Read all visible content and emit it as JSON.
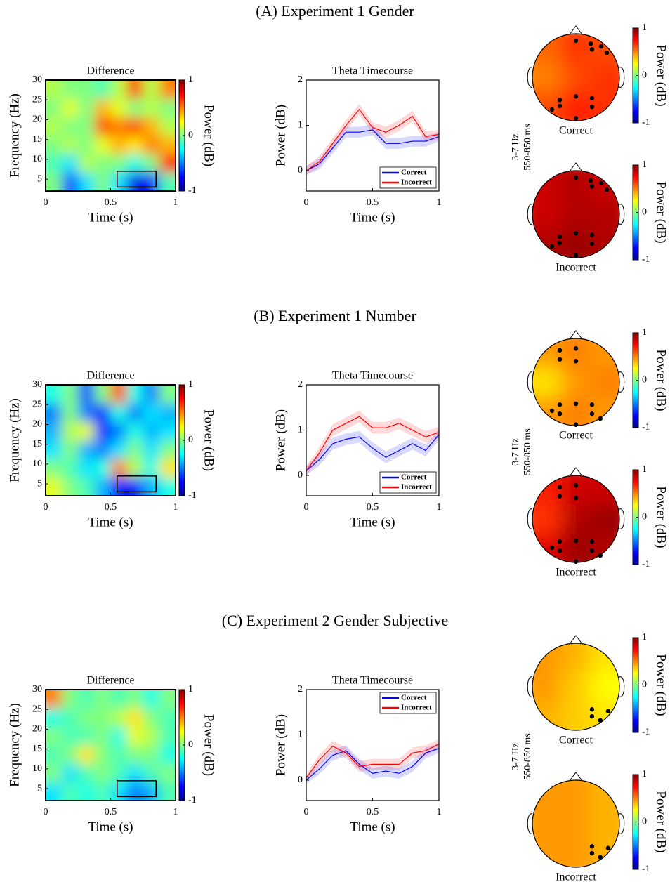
{
  "chart_data": [
    {
      "type": "heatmap",
      "panel_title": "(A) Experiment 1 Gender",
      "title": "Difference",
      "xlabel": "Time (s)",
      "ylabel": "Frequency (Hz)",
      "xlim": [
        0,
        1
      ],
      "ylim": [
        2,
        30
      ],
      "xticks": [
        0,
        0.5,
        1
      ],
      "yticks": [
        5,
        10,
        15,
        20,
        25,
        30
      ],
      "values": [
        [
          0,
          -0.6,
          -0.3,
          0,
          -0.3,
          -0.8,
          -0.7,
          -0.1
        ],
        [
          -0.1,
          -0.3,
          0.1,
          0,
          0,
          -0.2,
          0,
          0.7
        ],
        [
          0,
          0.1,
          0,
          0.2,
          0.4,
          0.3,
          0.5,
          0.4
        ],
        [
          0.1,
          0,
          0,
          0.6,
          0.5,
          0.6,
          0.4,
          0.1
        ],
        [
          0,
          0.2,
          0,
          0.4,
          0.2,
          0,
          0.1,
          0
        ],
        [
          0.1,
          0,
          0,
          -0.1,
          0.1,
          0.6,
          0.1,
          0.5
        ]
      ],
      "clim": [
        -1,
        1
      ],
      "cticks": [
        -1,
        0,
        1
      ],
      "colorbar_label": "Power (dB)",
      "box": {
        "x": [
          0.55,
          0.85
        ],
        "y": [
          3,
          7
        ]
      }
    },
    {
      "type": "line",
      "title": "Theta Timecourse",
      "xlabel": "Time (s)",
      "ylabel": "Power (dB)",
      "x": [
        0,
        0.1,
        0.2,
        0.3,
        0.4,
        0.5,
        0.6,
        0.7,
        0.8,
        0.9,
        1
      ],
      "xlim": [
        0,
        1
      ],
      "ylim": [
        -0.45,
        2
      ],
      "xticks": [
        0,
        0.5,
        1
      ],
      "yticks": [
        0,
        1,
        2
      ],
      "legend": "lower right",
      "series": [
        {
          "name": "Correct",
          "color": "#0000ff",
          "values": [
            0,
            0.15,
            0.5,
            0.85,
            0.85,
            0.9,
            0.6,
            0.6,
            0.65,
            0.65,
            0.75
          ],
          "error": [
            0.1,
            0.12,
            0.12,
            0.12,
            0.12,
            0.12,
            0.12,
            0.12,
            0.12,
            0.12,
            0.1
          ]
        },
        {
          "name": "Incorrect",
          "color": "#ff0000",
          "values": [
            0,
            0.2,
            0.6,
            1.0,
            1.35,
            0.95,
            0.85,
            1.0,
            1.2,
            0.75,
            0.8
          ],
          "error": [
            0.1,
            0.12,
            0.12,
            0.12,
            0.12,
            0.12,
            0.12,
            0.12,
            0.12,
            0.12,
            0.1
          ]
        }
      ]
    },
    {
      "type": "topomap",
      "band_label": [
        "3-7 Hz",
        "550-850 ms"
      ],
      "clim": [
        -1,
        1
      ],
      "cticks": [
        -1,
        0,
        1
      ],
      "colorbar_label": "Power (dB)",
      "electrodes": {
        "x": [
          0,
          0.34,
          0.58,
          0.71,
          0.37,
          -0.37,
          0,
          0.37,
          -0.55,
          -0.37,
          0.37,
          0
        ],
        "y": [
          0.84,
          0.77,
          0.71,
          0.56,
          0.64,
          -0.52,
          -0.44,
          -0.48,
          -0.74,
          -0.66,
          -0.68,
          -0.94
        ]
      },
      "heads": [
        {
          "name": "Correct",
          "values": [
            [
              0.55,
              0.65,
              0.6
            ],
            [
              0.5,
              0.6,
              0.65
            ],
            [
              0.6,
              0.7,
              0.65
            ]
          ]
        },
        {
          "name": "Incorrect",
          "values": [
            [
              0.85,
              0.9,
              0.85
            ],
            [
              0.85,
              0.9,
              0.9
            ],
            [
              0.9,
              0.95,
              0.9
            ]
          ]
        }
      ]
    },
    {
      "type": "heatmap",
      "panel_title": "(B) Experiment 1 Number",
      "title": "Difference",
      "xlabel": "Time (s)",
      "ylabel": "Frequency (Hz)",
      "xlim": [
        0,
        1
      ],
      "ylim": [
        2,
        30
      ],
      "xticks": [
        0,
        0.5,
        1
      ],
      "yticks": [
        5,
        10,
        15,
        20,
        25,
        30
      ],
      "values": [
        [
          0.2,
          0,
          -0.1,
          -0.4,
          -0.7,
          -0.7,
          -0.4,
          -0.2
        ],
        [
          0,
          -0.1,
          -0.3,
          -0.2,
          0.5,
          0.1,
          -0.2,
          0.3
        ],
        [
          -0.3,
          0,
          -0.4,
          -0.5,
          -0.3,
          0,
          -0.3,
          0
        ],
        [
          -0.4,
          0.1,
          0.2,
          -0.7,
          -0.5,
          -0.2,
          -0.4,
          -0.3
        ],
        [
          -0.5,
          0,
          -0.5,
          -0.7,
          -0.2,
          -0.5,
          -0.3,
          -0.4
        ],
        [
          -0.2,
          0,
          -0.6,
          0,
          0.6,
          -0.2,
          -0.5,
          0
        ]
      ],
      "clim": [
        -1,
        1
      ],
      "cticks": [
        -1,
        0,
        1
      ],
      "colorbar_label": "Power (dB)",
      "box": {
        "x": [
          0.55,
          0.85
        ],
        "y": [
          3,
          7
        ]
      }
    },
    {
      "type": "line",
      "title": "Theta Timecourse",
      "xlabel": "Time (s)",
      "ylabel": "Power (dB)",
      "x": [
        0,
        0.1,
        0.2,
        0.3,
        0.4,
        0.5,
        0.6,
        0.7,
        0.8,
        0.9,
        1
      ],
      "xlim": [
        0,
        1
      ],
      "ylim": [
        -0.45,
        2
      ],
      "xticks": [
        0,
        0.5,
        1
      ],
      "yticks": [
        0,
        1,
        2
      ],
      "legend": "lower right",
      "series": [
        {
          "name": "Correct",
          "color": "#0000ff",
          "values": [
            0.1,
            0.35,
            0.7,
            0.8,
            0.85,
            0.6,
            0.4,
            0.55,
            0.7,
            0.55,
            0.9
          ],
          "error": [
            0.1,
            0.13,
            0.13,
            0.13,
            0.13,
            0.13,
            0.13,
            0.13,
            0.13,
            0.13,
            0.12
          ]
        },
        {
          "name": "Incorrect",
          "color": "#ff0000",
          "values": [
            0.1,
            0.5,
            1.0,
            1.15,
            1.3,
            1.05,
            1.05,
            1.15,
            1.0,
            0.85,
            0.95
          ],
          "error": [
            0.1,
            0.13,
            0.13,
            0.13,
            0.13,
            0.13,
            0.13,
            0.13,
            0.13,
            0.13,
            0.12
          ]
        }
      ]
    },
    {
      "type": "topomap",
      "band_label": [
        "3-7 Hz",
        "550-850 ms"
      ],
      "clim": [
        -1,
        1
      ],
      "cticks": [
        -1,
        0,
        1
      ],
      "colorbar_label": "Power (dB)",
      "electrodes": {
        "x": [
          -0.37,
          0,
          -0.37,
          0,
          -0.37,
          0,
          0.37,
          -0.55,
          -0.37,
          0,
          0.37,
          0.56
        ],
        "y": [
          0.73,
          0.77,
          0.52,
          0.48,
          -0.52,
          -0.5,
          -0.52,
          -0.66,
          -0.73,
          -0.98,
          -0.73,
          -0.84
        ]
      },
      "heads": [
        {
          "name": "Correct",
          "values": [
            [
              0.45,
              0.5,
              0.45
            ],
            [
              0.3,
              0.45,
              0.5
            ],
            [
              0.45,
              0.5,
              0.45
            ]
          ]
        },
        {
          "name": "Incorrect",
          "values": [
            [
              0.7,
              0.85,
              0.85
            ],
            [
              0.65,
              0.9,
              0.95
            ],
            [
              0.8,
              0.95,
              0.9
            ]
          ]
        }
      ]
    },
    {
      "type": "heatmap",
      "panel_title": "(C) Experiment 2 Gender Subjective",
      "title": "Difference",
      "xlabel": "Time (s)",
      "ylabel": "Frequency (Hz)",
      "xlim": [
        0,
        1
      ],
      "ylim": [
        2,
        30
      ],
      "xticks": [
        0,
        0.5,
        1
      ],
      "yticks": [
        5,
        10,
        15,
        20,
        25,
        30
      ],
      "values": [
        [
          -0.3,
          -0.1,
          -0.2,
          -0.1,
          -0.3,
          -0.5,
          -0.4,
          -0.1
        ],
        [
          0,
          -0.3,
          -0.1,
          0,
          -0.1,
          -0.3,
          -0.1,
          0
        ],
        [
          -0.1,
          0,
          0.3,
          0,
          -0.1,
          0,
          0,
          -0.2
        ],
        [
          0,
          -0.1,
          -0.1,
          0,
          -0.2,
          0.2,
          0.1,
          -0.1
        ],
        [
          -0.2,
          -0.1,
          0,
          0,
          0.1,
          0.3,
          0,
          -0.1
        ],
        [
          0.5,
          0,
          -0.1,
          0,
          -0.1,
          0,
          -0.2,
          0
        ]
      ],
      "clim": [
        -1,
        1
      ],
      "cticks": [
        -1,
        0,
        1
      ],
      "colorbar_label": "Power (dB)",
      "box": {
        "x": [
          0.55,
          0.85
        ],
        "y": [
          3,
          7
        ]
      }
    },
    {
      "type": "line",
      "title": "Theta Timecourse",
      "xlabel": "Time (s)",
      "ylabel": "Power (dB)",
      "x": [
        0,
        0.1,
        0.2,
        0.3,
        0.4,
        0.5,
        0.6,
        0.7,
        0.8,
        0.9,
        1
      ],
      "xlim": [
        0,
        1
      ],
      "ylim": [
        -0.45,
        2
      ],
      "xticks": [
        0,
        0.5,
        1
      ],
      "yticks": [
        0,
        1,
        2
      ],
      "legend": "upper right",
      "series": [
        {
          "name": "Correct",
          "color": "#0000ff",
          "values": [
            0,
            0.25,
            0.55,
            0.65,
            0.35,
            0.15,
            0.2,
            0.15,
            0.3,
            0.6,
            0.7
          ],
          "error": [
            0.08,
            0.12,
            0.12,
            0.12,
            0.12,
            0.12,
            0.12,
            0.12,
            0.12,
            0.12,
            0.1
          ]
        },
        {
          "name": "Incorrect",
          "color": "#ff0000",
          "values": [
            0.05,
            0.45,
            0.75,
            0.6,
            0.3,
            0.35,
            0.35,
            0.35,
            0.6,
            0.65,
            0.8
          ],
          "error": [
            0.08,
            0.12,
            0.12,
            0.12,
            0.12,
            0.12,
            0.12,
            0.12,
            0.12,
            0.12,
            0.1
          ]
        }
      ]
    },
    {
      "type": "topomap",
      "band_label": [
        "3-7 Hz",
        "550-850 ms"
      ],
      "clim": [
        -1,
        1
      ],
      "cticks": [
        -1,
        0,
        1
      ],
      "colorbar_label": "Power (dB)",
      "electrodes": {
        "x": [
          0.37,
          0.74,
          0.37,
          0.56
        ],
        "y": [
          -0.52,
          -0.56,
          -0.68,
          -0.77
        ]
      },
      "heads": [
        {
          "name": "Correct",
          "values": [
            [
              0.45,
              0.4,
              0.3
            ],
            [
              0.45,
              0.35,
              0.25
            ],
            [
              0.4,
              0.35,
              0.3
            ]
          ]
        },
        {
          "name": "Incorrect",
          "values": [
            [
              0.45,
              0.45,
              0.4
            ],
            [
              0.45,
              0.45,
              0.4
            ],
            [
              0.45,
              0.45,
              0.4
            ]
          ]
        }
      ]
    }
  ]
}
